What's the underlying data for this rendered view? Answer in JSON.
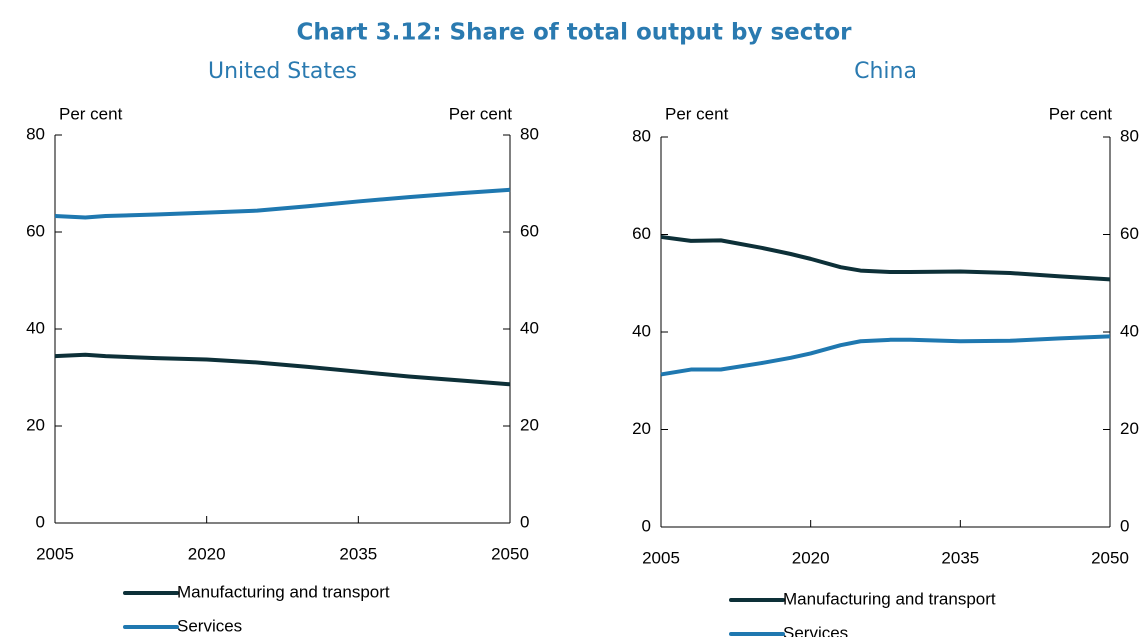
{
  "title": "Chart 3.12: Share of total output by sector",
  "chart_data": [
    {
      "type": "line",
      "title": "United States",
      "ylabel": "Per cent",
      "y2label": "Per cent",
      "x": [
        2005,
        2008,
        2010,
        2015,
        2020,
        2025,
        2030,
        2035,
        2040,
        2045,
        2050
      ],
      "series": [
        {
          "name": "Manufacturing and transport",
          "color": "#0d3038",
          "values": [
            34.4,
            34.7,
            34.4,
            34.0,
            33.7,
            33.1,
            32.2,
            31.2,
            30.2,
            29.4,
            28.6
          ]
        },
        {
          "name": "Services",
          "color": "#1f78b0",
          "values": [
            63.3,
            63.0,
            63.3,
            63.6,
            64.0,
            64.4,
            65.3,
            66.3,
            67.2,
            68.0,
            68.7
          ]
        }
      ],
      "xlim": [
        2005,
        2050
      ],
      "xticks": [
        2005,
        2020,
        2035,
        2050
      ],
      "ylim": [
        0,
        80
      ],
      "yticks": [
        0,
        20,
        40,
        60,
        80
      ],
      "y2lim": [
        0,
        80
      ],
      "y2ticks": [
        0,
        20,
        40,
        60,
        80
      ]
    },
    {
      "type": "line",
      "title": "China",
      "ylabel": "Per cent",
      "y2label": "Per cent",
      "x": [
        2005,
        2008,
        2011,
        2015,
        2018,
        2020,
        2023,
        2025,
        2028,
        2030,
        2035,
        2040,
        2045,
        2050
      ],
      "series": [
        {
          "name": "Manufacturing and transport",
          "color": "#0d3038",
          "values": [
            59.5,
            58.7,
            58.8,
            57.3,
            56.0,
            55.0,
            53.3,
            52.6,
            52.3,
            52.3,
            52.4,
            52.1,
            51.4,
            50.8
          ]
        },
        {
          "name": "Services",
          "color": "#1f78b0",
          "values": [
            31.3,
            32.3,
            32.3,
            33.6,
            34.7,
            35.6,
            37.3,
            38.1,
            38.4,
            38.4,
            38.1,
            38.2,
            38.7,
            39.1
          ]
        }
      ],
      "xlim": [
        2005,
        2050
      ],
      "xticks": [
        2005,
        2020,
        2035,
        2050
      ],
      "ylim": [
        0,
        80
      ],
      "yticks": [
        0,
        20,
        40,
        60,
        80
      ],
      "y2lim": [
        0,
        80
      ],
      "y2ticks": [
        0,
        20,
        40,
        60,
        80
      ]
    }
  ]
}
